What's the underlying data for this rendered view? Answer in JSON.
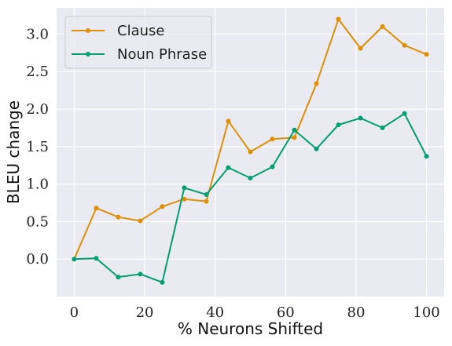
{
  "chart_data": {
    "type": "line",
    "xlabel": "% Neurons Shifted",
    "ylabel": "BLEU change",
    "xlim": [
      -5,
      105
    ],
    "ylim": [
      -0.5,
      3.35
    ],
    "x_ticks": [
      0,
      20,
      40,
      60,
      80,
      100
    ],
    "y_ticks": [
      0.0,
      0.5,
      1.0,
      1.5,
      2.0,
      2.5,
      3.0
    ],
    "x_tick_labels": [
      "0",
      "20",
      "40",
      "60",
      "80",
      "100"
    ],
    "y_tick_labels": [
      "0.0",
      "0.5",
      "1.0",
      "1.5",
      "2.0",
      "2.5",
      "3.0"
    ],
    "grid": true,
    "legend_position": "top-left",
    "background_color": "#eaeaf2",
    "grid_color": "#ffffff",
    "x": [
      0,
      6.25,
      12.5,
      18.75,
      25,
      31.25,
      37.5,
      43.75,
      50,
      56.25,
      62.5,
      68.75,
      75,
      81.25,
      87.5,
      93.75,
      100
    ],
    "series": [
      {
        "name": "Clause",
        "color": "#de8f05",
        "values": [
          0.0,
          0.68,
          0.56,
          0.51,
          0.7,
          0.8,
          0.77,
          1.84,
          1.43,
          1.6,
          1.62,
          2.34,
          3.2,
          2.81,
          3.1,
          2.85,
          2.73
        ]
      },
      {
        "name": "Noun Phrase",
        "color": "#029e73",
        "values": [
          0.0,
          0.01,
          -0.24,
          -0.2,
          -0.31,
          0.95,
          0.86,
          1.22,
          1.08,
          1.23,
          1.72,
          1.47,
          1.79,
          1.88,
          1.75,
          1.94,
          1.37
        ]
      }
    ]
  }
}
